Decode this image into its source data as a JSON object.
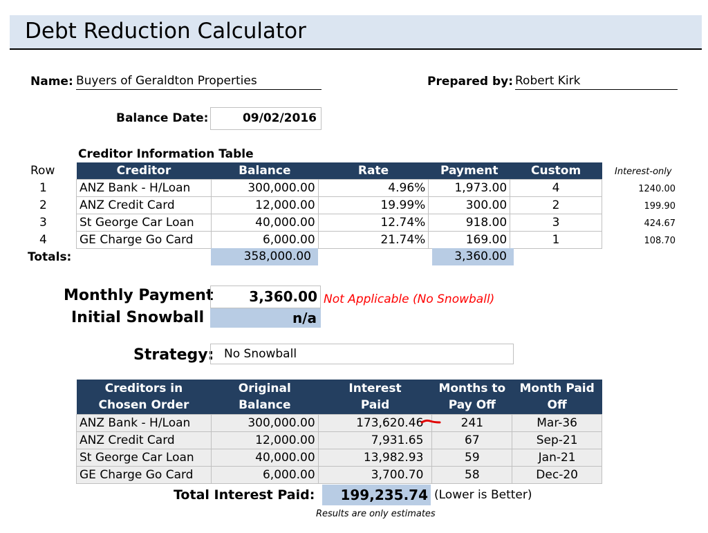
{
  "title": "Debt Reduction Calculator",
  "header": {
    "name_label": "Name:",
    "name_value": "Buyers of Geraldton Properties",
    "prepared_label": "Prepared by:",
    "prepared_value": "Robert Kirk",
    "balance_date_label": "Balance Date:",
    "balance_date_value": "09/02/2016"
  },
  "creditor_table": {
    "caption": "Creditor Information Table",
    "row_header": "Row",
    "columns": [
      "Creditor",
      "Balance",
      "Rate",
      "Payment",
      "Custom"
    ],
    "interest_only_header": "Interest-only",
    "rows": [
      {
        "row": "1",
        "creditor": "ANZ Bank - H/Loan",
        "balance": "300,000.00",
        "rate": "4.96%",
        "payment": "1,973.00",
        "custom": "4",
        "interest_only": "1240.00"
      },
      {
        "row": "2",
        "creditor": "ANZ Credit Card",
        "balance": "12,000.00",
        "rate": "19.99%",
        "payment": "300.00",
        "custom": "2",
        "interest_only": "199.90"
      },
      {
        "row": "3",
        "creditor": "St George Car Loan",
        "balance": "40,000.00",
        "rate": "12.74%",
        "payment": "918.00",
        "custom": "3",
        "interest_only": "424.67"
      },
      {
        "row": "4",
        "creditor": "GE Charge Go Card",
        "balance": "6,000.00",
        "rate": "21.74%",
        "payment": "169.00",
        "custom": "1",
        "interest_only": "108.70"
      }
    ],
    "totals_label": "Totals:",
    "total_balance": "358,000.00",
    "total_payment": "3,360.00"
  },
  "monthly": {
    "payment_label": "Monthly Payment",
    "payment_value": "3,360.00",
    "note": "Not Applicable (No Snowball)",
    "snowball_label": "Initial Snowball",
    "snowball_value": "n/a"
  },
  "strategy": {
    "label": "Strategy:",
    "value": "No Snowball"
  },
  "results_table": {
    "columns": [
      [
        "Creditors in",
        "Chosen Order"
      ],
      [
        "Original",
        "Balance"
      ],
      [
        "Interest",
        "Paid"
      ],
      [
        "Months to",
        "Pay Off"
      ],
      [
        "Month Paid",
        "Off"
      ]
    ],
    "rows": [
      {
        "creditor": "ANZ Bank - H/Loan",
        "balance": "300,000.00",
        "interest": "173,620.46",
        "months": "241",
        "paid_off": "Mar-36"
      },
      {
        "creditor": "ANZ Credit Card",
        "balance": "12,000.00",
        "interest": "7,931.65",
        "months": "67",
        "paid_off": "Sep-21"
      },
      {
        "creditor": "St George Car Loan",
        "balance": "40,000.00",
        "interest": "13,982.93",
        "months": "59",
        "paid_off": "Jan-21"
      },
      {
        "creditor": "GE Charge Go Card",
        "balance": "6,000.00",
        "interest": "3,700.70",
        "months": "58",
        "paid_off": "Dec-20"
      }
    ],
    "total_label": "Total Interest Paid:",
    "total_value": "199,235.74",
    "total_note": "(Lower is Better)",
    "footnote": "Results are only estimates"
  },
  "colors": {
    "header_fill": "#243f60",
    "total_fill": "#b8cce4",
    "title_fill": "#dbe5f1",
    "note_red": "#ff0000",
    "annotation_red": "#e00000"
  }
}
